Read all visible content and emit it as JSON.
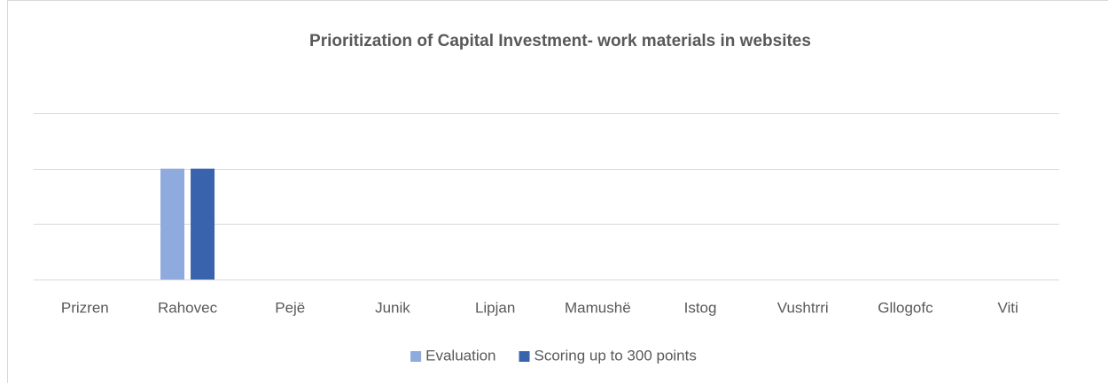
{
  "chart_data": {
    "type": "bar",
    "title": "Prioritization of Capital Investment- work materials in websites",
    "categories": [
      "Prizren",
      "Rahovec",
      "Pejë",
      "Junik",
      "Lipjan",
      "Mamushë",
      "Istog",
      "Vushtrri",
      "Gllogofc",
      "Viti"
    ],
    "series": [
      {
        "name": "Evaluation",
        "color": "#8faadc",
        "values": [
          0,
          2,
          0,
          0,
          0,
          0,
          0,
          0,
          0,
          0
        ]
      },
      {
        "name": "Scoring up to 300 points",
        "color": "#3a63ad",
        "values": [
          0,
          2,
          0,
          0,
          0,
          0,
          0,
          0,
          0,
          0
        ]
      }
    ],
    "ylim": [
      0,
      3
    ],
    "yticks": [
      0,
      1,
      2,
      3
    ],
    "grid": true,
    "legend": "bottom"
  }
}
